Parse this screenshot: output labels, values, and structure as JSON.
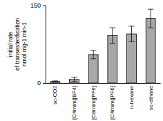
{
  "chart_data": {
    "type": "bar",
    "y_label": [
      "initial rate",
      "of transesterification",
      "nmol mg-1 min-1"
    ],
    "categories": [
      "sc-CO2",
      "[C4mim][BF4]",
      "[C8mim][PF6]",
      "[C4mim][PF6]",
      "n-hexane",
      "sc-ethane"
    ],
    "values": [
      3,
      7,
      55,
      92,
      95,
      125
    ],
    "errors": [
      1,
      4,
      8,
      15,
      15,
      18
    ],
    "color": "#a8a8a8",
    "ylim": [
      0,
      150
    ],
    "yticks": [
      0,
      150
    ],
    "grid": false
  }
}
